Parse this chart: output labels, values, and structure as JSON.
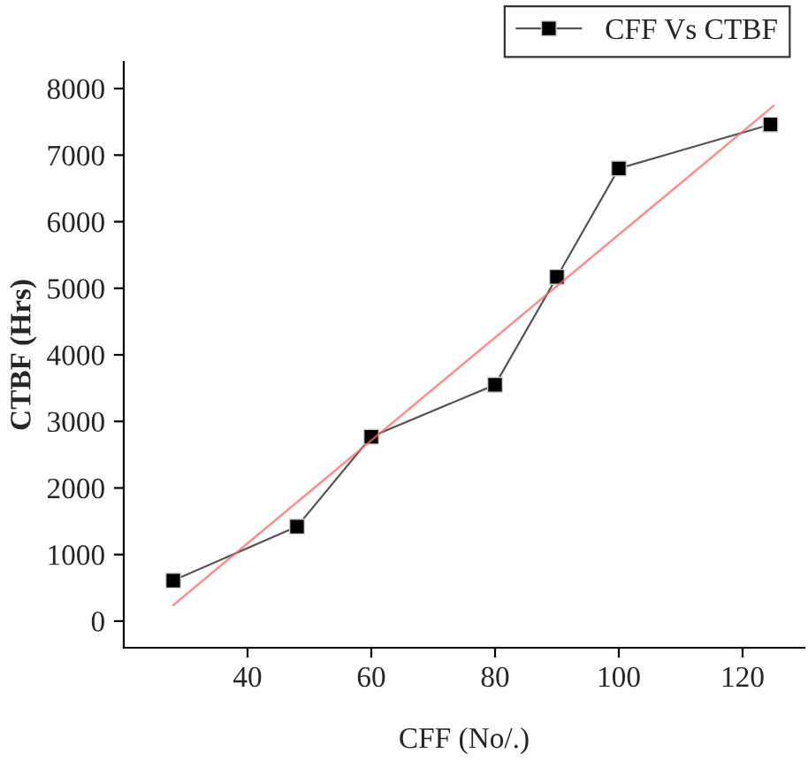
{
  "chart_data": {
    "type": "line",
    "xlabel": "CFF (No/.)",
    "ylabel": "CTBF (Hrs)",
    "series": [
      {
        "name": "CFF Vs CTBF",
        "color": "#000000",
        "x": [
          28,
          48,
          60,
          80,
          90,
          100,
          124.5
        ],
        "values": [
          610,
          1420,
          2770,
          3550,
          5170,
          6800,
          7460
        ],
        "marker": "square"
      },
      {
        "type": "line",
        "color": "#ff6666",
        "x": [
          28,
          125
        ],
        "values": [
          240,
          7740
        ],
        "marker": "none"
      }
    ],
    "xlim": [
      20,
      130
    ],
    "xticks": [
      40,
      60,
      80,
      100,
      120
    ],
    "ylim": [
      -400,
      8400
    ],
    "yticks": [
      0,
      1000,
      2000,
      3000,
      4000,
      5000,
      6000,
      7000,
      8000
    ],
    "grid": false,
    "legend": "top right"
  }
}
